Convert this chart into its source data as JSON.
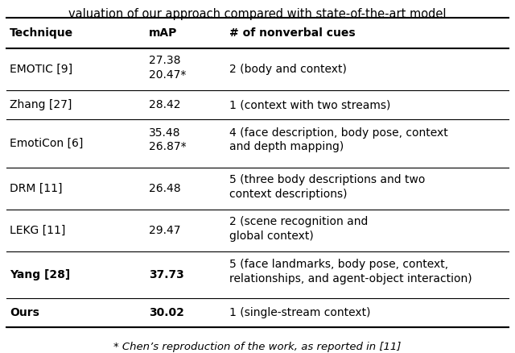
{
  "title": "valuation of our approach compared with state-of-the-art model",
  "title_fontsize": 10.5,
  "headers": [
    "Technique",
    "mAP",
    "# of nonverbal cues"
  ],
  "rows": [
    {
      "technique": "EMOTIC [9]",
      "map": "27.38\n20.47*",
      "cues": "2 (body and context)",
      "bold_technique": false,
      "bold_map": false
    },
    {
      "technique": "Zhang [27]",
      "map": "28.42",
      "cues": "1 (context with two streams)",
      "bold_technique": false,
      "bold_map": false
    },
    {
      "technique": "EmotiCon [6]",
      "map": "35.48\n26.87*",
      "cues": "4 (face description, body pose, context\nand depth mapping)",
      "bold_technique": false,
      "bold_map": false
    },
    {
      "technique": "DRM [11]",
      "map": "26.48",
      "cues": "5 (three body descriptions and two\ncontext descriptions)",
      "bold_technique": false,
      "bold_map": false
    },
    {
      "technique": "LEKG [11]",
      "map": "29.47",
      "cues": "2 (scene recognition and\nglobal context)",
      "bold_technique": false,
      "bold_map": false
    },
    {
      "technique": "Yang [28]",
      "map": "37.73",
      "cues": "5 (face landmarks, body pose, context,\nrelationships, and agent-object interaction)",
      "bold_technique": true,
      "bold_map": true
    },
    {
      "technique": "Ours",
      "map": "30.02",
      "cues": "1 (single-stream context)",
      "bold_technique": true,
      "bold_map": true
    }
  ],
  "footnote": "* Chen’s reproduction of the work, as reported in [11]",
  "fontsize": 10.0,
  "header_fontsize": 10.0,
  "bg_color": "#ffffff",
  "text_color": "#000000",
  "line_color": "#000000"
}
